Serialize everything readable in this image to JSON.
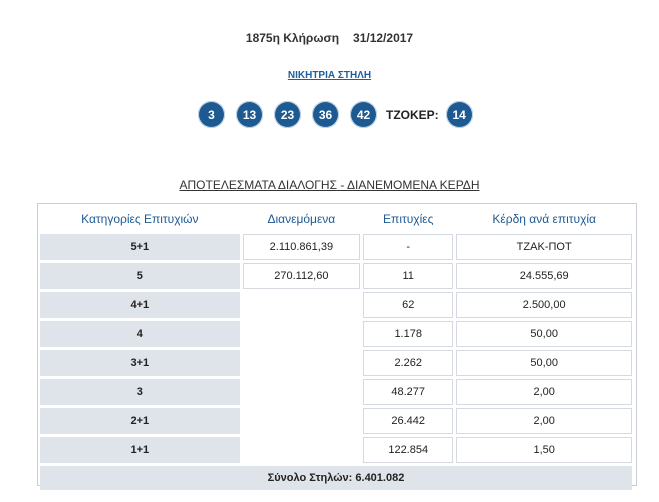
{
  "draw": {
    "label": "1875η Κλήρωση",
    "date": "31/12/2017"
  },
  "winning_column_link": "ΝΙΚΗΤΡΙΑ ΣΤΗΛΗ",
  "numbers": [
    "3",
    "13",
    "23",
    "36",
    "42"
  ],
  "joker": {
    "label": "ΤΖΟΚΕΡ:",
    "number": "14"
  },
  "results_title": "ΑΠΟΤΕΛΕΣΜΑΤΑ ΔΙΑΛΟΓΗΣ - ΔΙΑΝΕΜΟΜΕΝΑ ΚΕΡΔΗ",
  "table": {
    "headers": [
      "Κατηγορίες Επιτυχιών",
      "Διανεμόμενα",
      "Επιτυχίες",
      "Κέρδη ανά επιτυχία"
    ],
    "rows": [
      {
        "category": "5+1",
        "distributed": "2.110.861,39",
        "winners": "-",
        "prize": "ΤΖΑΚ-ΠΟΤ"
      },
      {
        "category": "5",
        "distributed": "270.112,60",
        "winners": "11",
        "prize": "24.555,69"
      },
      {
        "category": "4+1",
        "distributed": "",
        "winners": "62",
        "prize": "2.500,00"
      },
      {
        "category": "4",
        "distributed": "",
        "winners": "1.178",
        "prize": "50,00"
      },
      {
        "category": "3+1",
        "distributed": "",
        "winners": "2.262",
        "prize": "50,00"
      },
      {
        "category": "3",
        "distributed": "",
        "winners": "48.277",
        "prize": "2,00"
      },
      {
        "category": "2+1",
        "distributed": "",
        "winners": "26.442",
        "prize": "2,00"
      },
      {
        "category": "1+1",
        "distributed": "",
        "winners": "122.854",
        "prize": "1,50"
      }
    ],
    "total": "Σύνολο Στηλών: 6.401.082"
  },
  "colors": {
    "ball": "#1d5a91",
    "header_text": "#1d5a91",
    "category_bg": "#dfe3ea"
  }
}
